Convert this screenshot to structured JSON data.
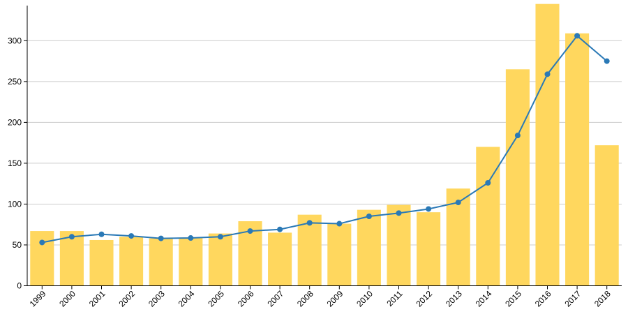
{
  "chart_data": {
    "type": "bar",
    "title": "",
    "xlabel": "",
    "ylabel": "",
    "ylim": [
      0,
      343
    ],
    "yticks": [
      0,
      50,
      100,
      150,
      200,
      250,
      300
    ],
    "grid": true,
    "categories": [
      "1999",
      "2000",
      "2001",
      "2002",
      "2003",
      "2004",
      "2005",
      "2006",
      "2007",
      "2008",
      "2009",
      "2010",
      "2011",
      "2012",
      "2013",
      "2014",
      "2015",
      "2016",
      "2017",
      "2018"
    ],
    "series": [
      {
        "type": "bar",
        "values": [
          67,
          67,
          56,
          60,
          58,
          59,
          64,
          79,
          65,
          87,
          76,
          93,
          99,
          90,
          119,
          170,
          265,
          345,
          309,
          172
        ]
      },
      {
        "type": "line",
        "values": [
          53,
          60,
          63,
          61,
          58,
          58.5,
          60,
          67,
          69,
          77,
          76,
          85,
          89,
          94,
          102,
          126,
          184,
          259,
          306,
          275
        ]
      }
    ],
    "colors": {
      "bar": "#ffd75e",
      "line": "#2a79b6",
      "grid": "#cccccc",
      "axis": "#000000"
    }
  }
}
